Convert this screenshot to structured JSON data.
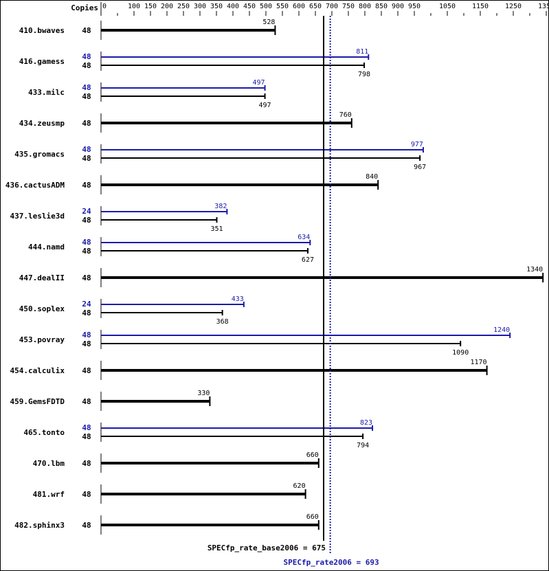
{
  "chart_data": {
    "type": "bar",
    "orientation": "horizontal",
    "copies_header": "Copies",
    "xlim": [
      0,
      1350
    ],
    "tick_labels": [
      0,
      100,
      150,
      200,
      250,
      300,
      350,
      400,
      450,
      500,
      550,
      600,
      650,
      700,
      750,
      800,
      850,
      900,
      950,
      1050,
      1150,
      1250,
      1350
    ],
    "minor_ticks": [
      50,
      1000,
      1100,
      1200,
      1300
    ],
    "colors": {
      "base": "#000000",
      "peak": "#1a1aaa"
    },
    "benchmarks": [
      {
        "name": "410.bwaves",
        "base_copies": 48,
        "base": 528
      },
      {
        "name": "416.gamess",
        "peak_copies": 48,
        "peak": 811,
        "base_copies": 48,
        "base": 798
      },
      {
        "name": "433.milc",
        "peak_copies": 48,
        "peak": 497,
        "base_copies": 48,
        "base": 497
      },
      {
        "name": "434.zeusmp",
        "base_copies": 48,
        "base": 760
      },
      {
        "name": "435.gromacs",
        "peak_copies": 48,
        "peak": 977,
        "base_copies": 48,
        "base": 967
      },
      {
        "name": "436.cactusADM",
        "base_copies": 48,
        "base": 840
      },
      {
        "name": "437.leslie3d",
        "peak_copies": 24,
        "peak": 382,
        "base_copies": 48,
        "base": 351
      },
      {
        "name": "444.namd",
        "peak_copies": 48,
        "peak": 634,
        "base_copies": 48,
        "base": 627
      },
      {
        "name": "447.dealII",
        "base_copies": 48,
        "base": 1340
      },
      {
        "name": "450.soplex",
        "peak_copies": 24,
        "peak": 433,
        "base_copies": 48,
        "base": 368
      },
      {
        "name": "453.povray",
        "peak_copies": 48,
        "peak": 1240,
        "base_copies": 48,
        "base": 1090
      },
      {
        "name": "454.calculix",
        "base_copies": 48,
        "base": 1170
      },
      {
        "name": "459.GemsFDTD",
        "base_copies": 48,
        "base": 330
      },
      {
        "name": "465.tonto",
        "peak_copies": 48,
        "peak": 823,
        "base_copies": 48,
        "base": 794
      },
      {
        "name": "470.lbm",
        "base_copies": 48,
        "base": 660
      },
      {
        "name": "481.wrf",
        "base_copies": 48,
        "base": 620
      },
      {
        "name": "482.sphinx3",
        "base_copies": 48,
        "base": 660
      }
    ],
    "reference_lines": [
      {
        "label": "SPECfp_rate_base2006 = 675",
        "value": 675,
        "style": "solid"
      },
      {
        "label": "SPECfp_rate2006 = 693",
        "value": 693,
        "style": "dotted"
      }
    ]
  }
}
